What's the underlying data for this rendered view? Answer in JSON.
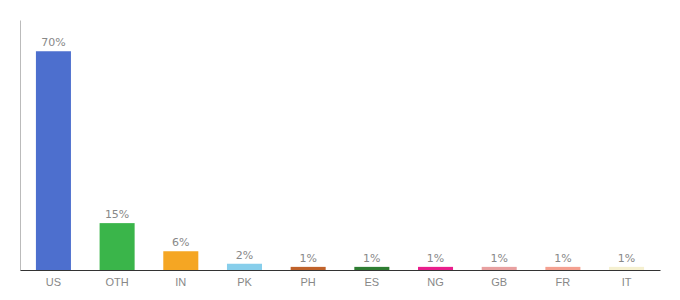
{
  "chart_data": {
    "type": "bar",
    "categories": [
      "US",
      "OTH",
      "IN",
      "PK",
      "PH",
      "ES",
      "NG",
      "GB",
      "FR",
      "IT"
    ],
    "values": [
      70,
      15,
      6,
      2,
      1,
      1,
      1,
      1,
      1,
      1
    ],
    "value_labels": [
      "70%",
      "15%",
      "6%",
      "2%",
      "1%",
      "1%",
      "1%",
      "1%",
      "1%",
      "1%"
    ],
    "colors": [
      "#4d6fce",
      "#3ab54a",
      "#f5a623",
      "#87ceeb",
      "#c0622b",
      "#2e7d32",
      "#e91e8c",
      "#e8a0a0",
      "#f4a090",
      "#f5f0d0"
    ],
    "ylim": [
      0,
      80
    ],
    "data_labels": true,
    "tick_labels": "x"
  }
}
